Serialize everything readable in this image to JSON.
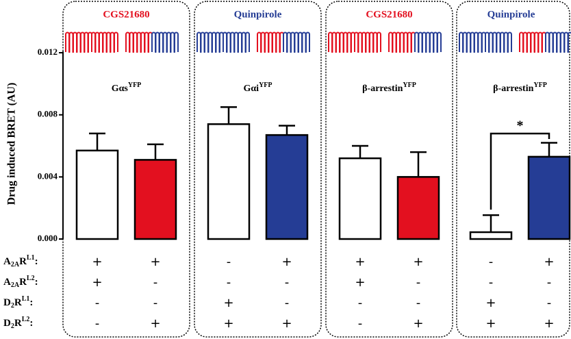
{
  "chart_data": {
    "type": "bar",
    "y_label": "Drug induced BRET (AU)",
    "ylim": [
      0,
      0.012
    ],
    "yticks": [
      {
        "value": 0,
        "label": "0.000"
      },
      {
        "value": 0.004,
        "label": "0.004"
      },
      {
        "value": 0.008,
        "label": "0.008"
      },
      {
        "value": 0.012,
        "label": "0.012"
      }
    ],
    "panels": [
      {
        "drug": "CGS21680",
        "drug_color": "#e3101f",
        "target": "Gαs",
        "target_sup": "YFP"
      },
      {
        "drug": "Quinpirole",
        "drug_color": "#253d95",
        "target": "Gαi",
        "target_sup": "YFP"
      },
      {
        "drug": "CGS21680",
        "drug_color": "#e3101f",
        "target": "β-arrestin",
        "target_sup": "YFP"
      },
      {
        "drug": "Quinpirole",
        "drug_color": "#253d95",
        "target": "β-arrestin",
        "target_sup": "YFP"
      }
    ],
    "values": [
      0.0057,
      0.0051,
      0.0074,
      0.0067,
      0.0052,
      0.004,
      0.00044,
      0.0053
    ],
    "errors": [
      0.0011,
      0.001,
      0.0011,
      0.0006,
      0.0008,
      0.0016,
      0.0011,
      0.0009
    ],
    "colors": [
      "#ffffff",
      "#e3101f",
      "#ffffff",
      "#253d95",
      "#ffffff",
      "#e3101f",
      "#ffffff",
      "#253d95"
    ],
    "annotations": [
      {
        "text": "*"
      }
    ],
    "condition_rows": [
      {
        "name": [
          "A",
          "2A",
          "R",
          "L1",
          ":"
        ],
        "values": [
          "+",
          "+",
          "-",
          "+",
          "+",
          "+",
          "-",
          "+"
        ]
      },
      {
        "name": [
          "A",
          "2A",
          "R",
          "L2",
          ":"
        ],
        "values": [
          "+",
          "-",
          "-",
          "-",
          "+",
          "-",
          "-",
          "-"
        ]
      },
      {
        "name": [
          "D",
          "2",
          "R",
          "L1",
          ":"
        ],
        "values": [
          "-",
          "-",
          "+",
          "-",
          "-",
          "-",
          "+",
          "-"
        ]
      },
      {
        "name": [
          "D",
          "2",
          "R",
          "L2",
          ":"
        ],
        "values": [
          "-",
          "+",
          "+",
          "+",
          "-",
          "+",
          "+",
          "+"
        ]
      }
    ]
  }
}
